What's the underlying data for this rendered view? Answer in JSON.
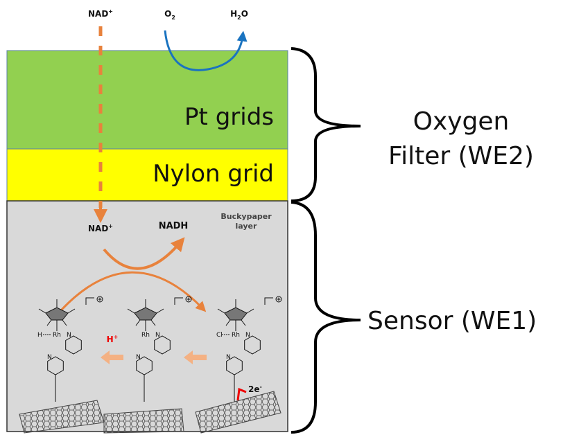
{
  "top": {
    "nad": {
      "base": "NAD",
      "sup": "+"
    },
    "o2": {
      "base": "O",
      "sub": "2"
    },
    "h2o": {
      "base": "H",
      "sub": "2",
      "tail": "O"
    }
  },
  "layers": {
    "pt": "Pt grids",
    "nylon": "Nylon grid",
    "buckypaper": [
      "Buckypaper",
      "layer"
    ]
  },
  "reaction": {
    "nad": {
      "base": "NAD",
      "sup": "+"
    },
    "nadh": "NADH",
    "proton": {
      "base": "H",
      "sup": "+"
    },
    "electrons": {
      "base": "2e",
      "sup": "-"
    }
  },
  "molecules": [
    {
      "ligand": "H",
      "metal": "Rh",
      "n1": "N",
      "n2": "N"
    },
    {
      "metal": "Rh",
      "n1": "N",
      "n2": "N"
    },
    {
      "ligand": "Cl",
      "metal": "Rh",
      "n1": "N",
      "n2": "N"
    }
  ],
  "labels": {
    "filter": [
      "Oxygen",
      "Filter (WE2)"
    ],
    "sensor": "Sensor (WE1)"
  }
}
